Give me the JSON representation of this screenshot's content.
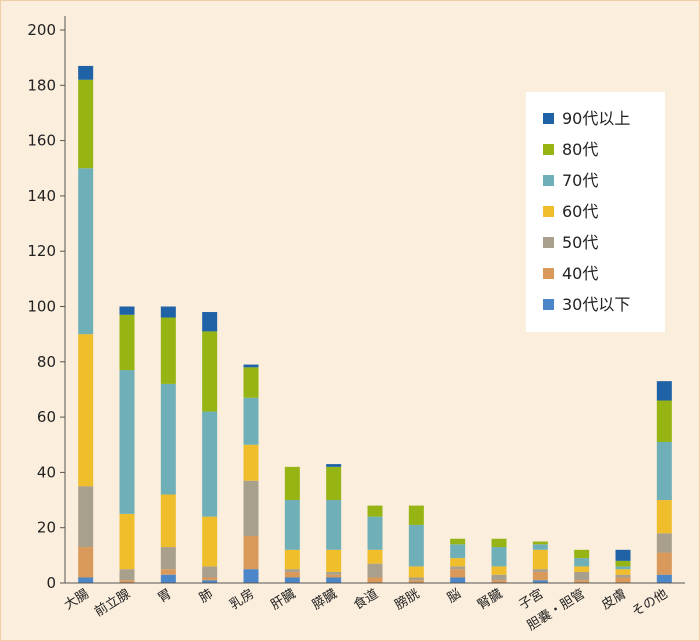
{
  "colors": {
    "background": "#fbeedd",
    "border": "#f0cfa8",
    "axis": "#555555"
  },
  "chart_data": {
    "type": "bar",
    "stacked": true,
    "title": "",
    "xlabel": "",
    "ylabel": "",
    "ylim": [
      0,
      200
    ],
    "yticks": [
      0,
      20,
      40,
      60,
      80,
      100,
      120,
      140,
      160,
      180,
      200
    ],
    "grid": false,
    "legend_position": "right",
    "categories": [
      "大腸",
      "前立腺",
      "胃",
      "肺",
      "乳房",
      "肝臓",
      "膵臓",
      "食道",
      "膀胱",
      "脳",
      "腎臓",
      "子宮",
      "胆嚢・胆管",
      "皮膚",
      "その他"
    ],
    "series": [
      {
        "name": "30代以下",
        "color": "#4a86c8",
        "values": [
          2,
          0,
          3,
          1,
          5,
          2,
          2,
          0,
          0,
          2,
          0,
          1,
          0,
          0,
          3
        ]
      },
      {
        "name": "40代",
        "color": "#d9995a",
        "values": [
          11,
          1,
          2,
          1,
          12,
          2,
          1,
          2,
          1,
          3,
          1,
          3,
          1,
          2,
          8
        ]
      },
      {
        "name": "50代",
        "color": "#a89f8c",
        "values": [
          22,
          4,
          8,
          4,
          20,
          1,
          1,
          5,
          1,
          1,
          2,
          1,
          3,
          1,
          7
        ]
      },
      {
        "name": "60代",
        "color": "#f0be2a",
        "values": [
          55,
          20,
          19,
          18,
          13,
          7,
          8,
          5,
          4,
          3,
          3,
          7,
          2,
          2,
          12
        ]
      },
      {
        "name": "70代",
        "color": "#6eafb8",
        "values": [
          60,
          52,
          40,
          38,
          17,
          18,
          18,
          12,
          15,
          5,
          7,
          2,
          3,
          1,
          21
        ]
      },
      {
        "name": "80代",
        "color": "#96b414",
        "values": [
          32,
          20,
          24,
          29,
          11,
          12,
          12,
          4,
          7,
          2,
          3,
          1,
          3,
          2,
          15
        ]
      },
      {
        "name": "90代以上",
        "color": "#1f62a6",
        "values": [
          5,
          3,
          4,
          7,
          1,
          0,
          1,
          0,
          0,
          0,
          0,
          0,
          0,
          4,
          7
        ]
      }
    ]
  }
}
